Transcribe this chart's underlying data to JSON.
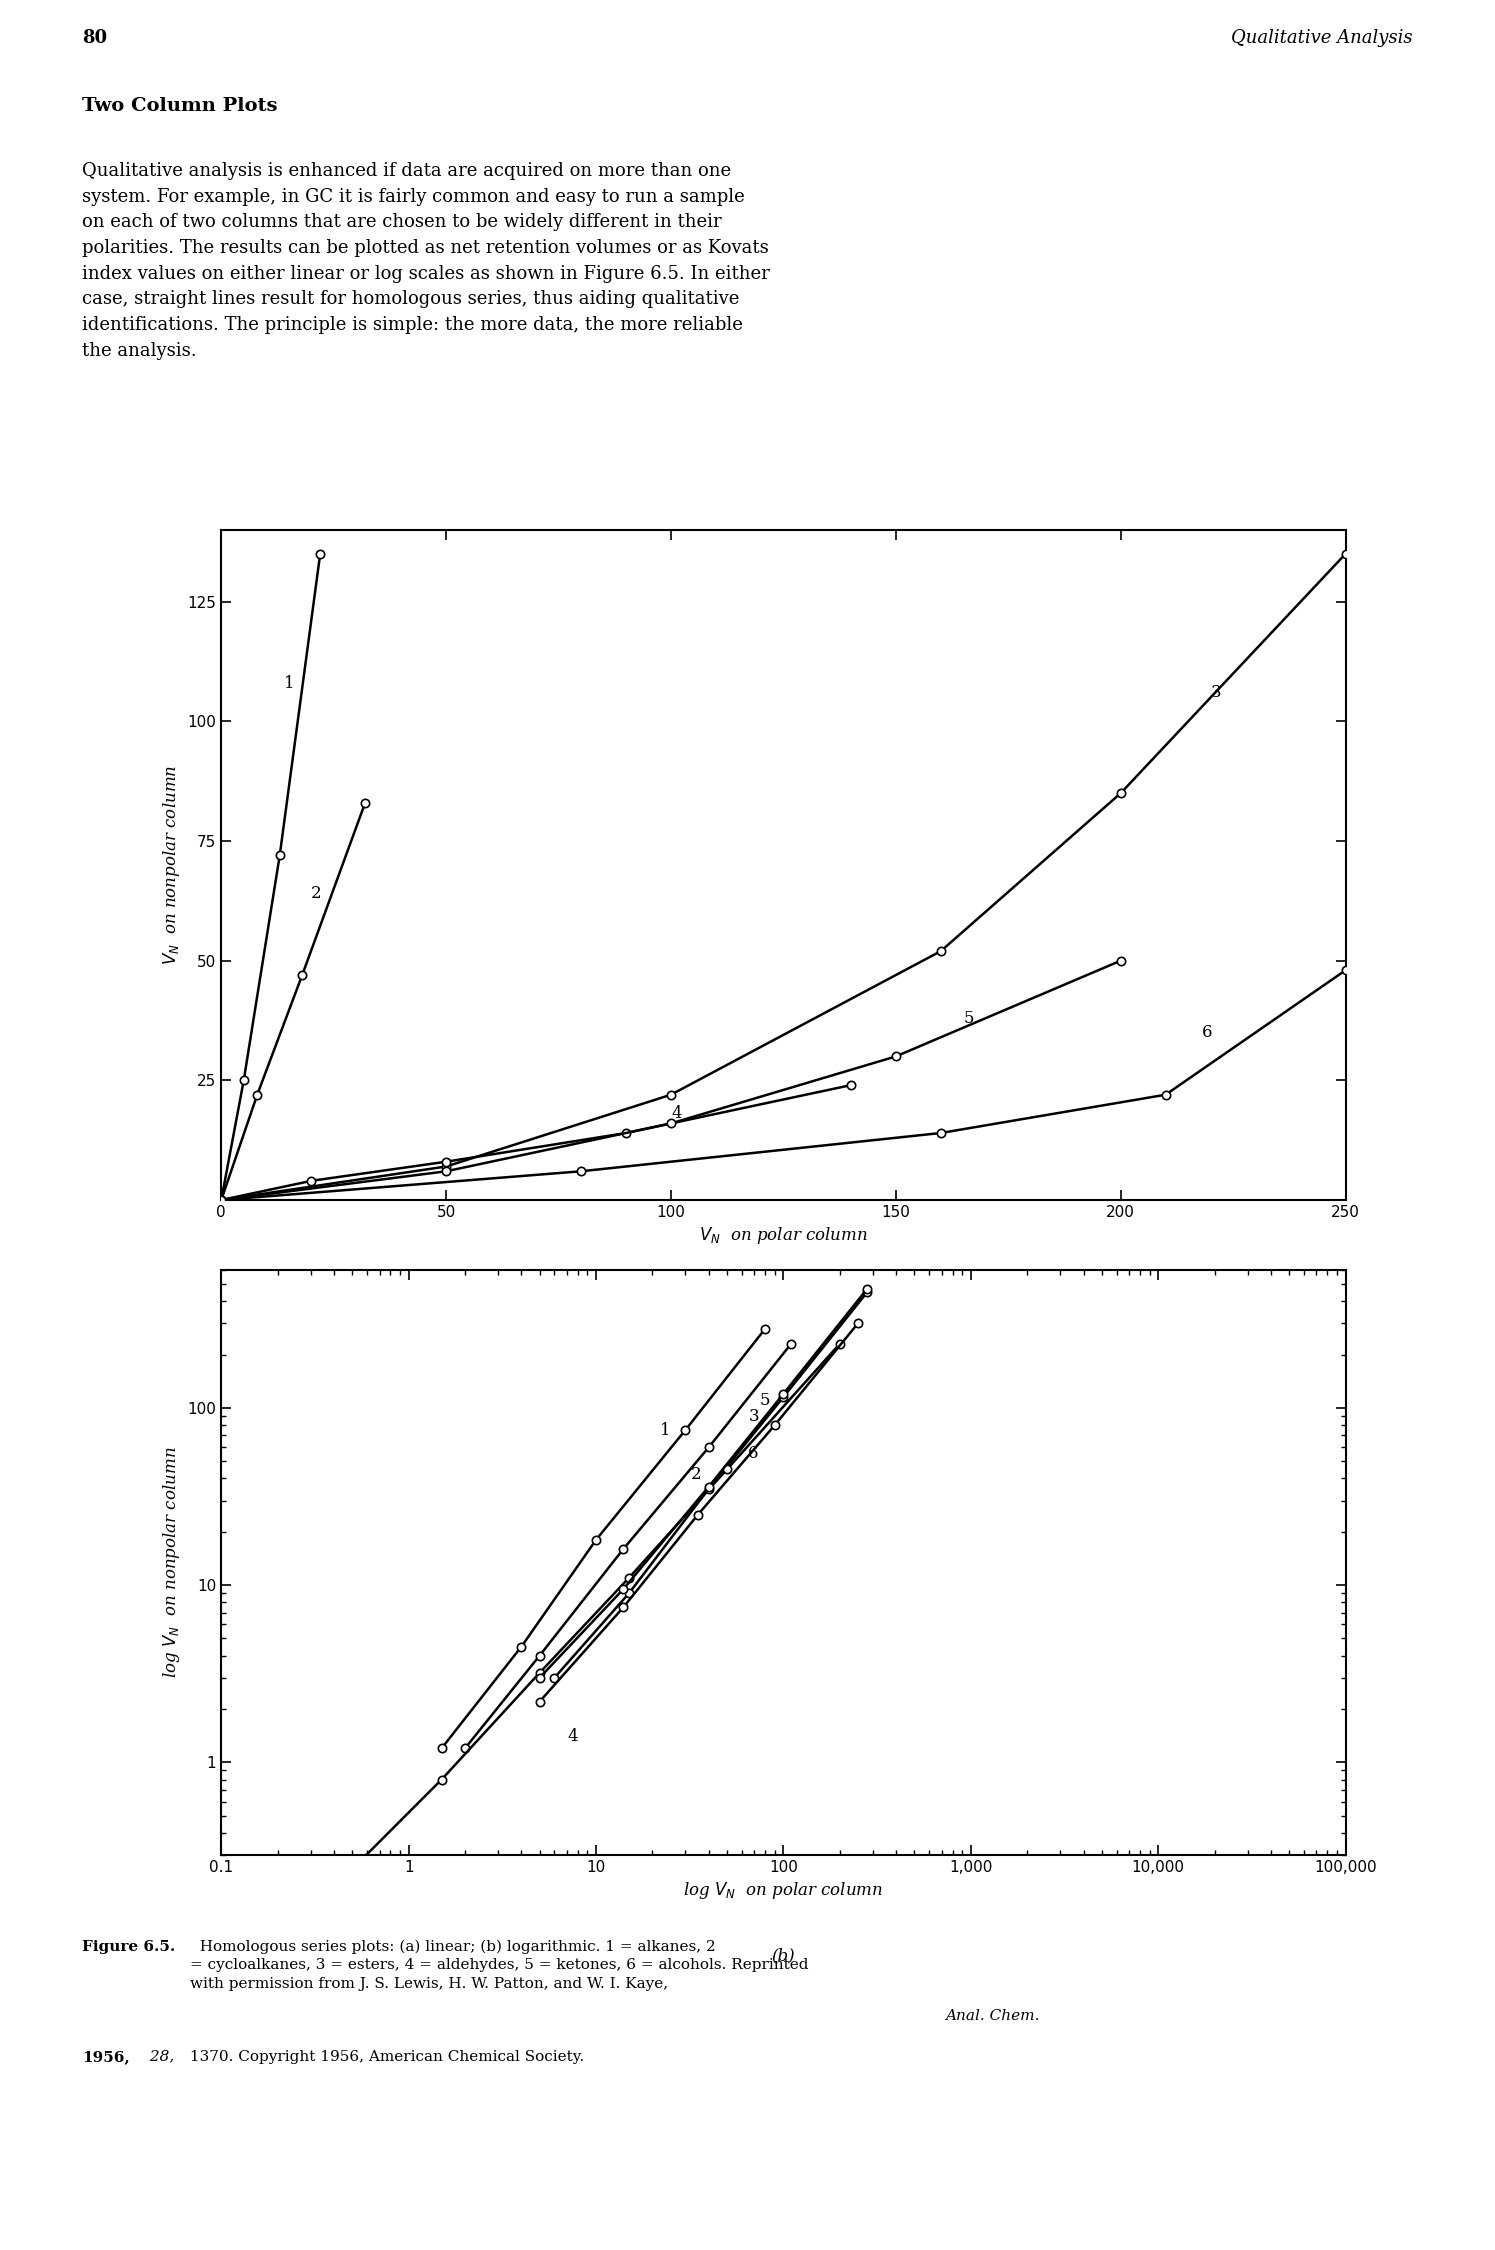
{
  "xlabel_a": "$V_N$  on polar column",
  "ylabel_a": "$V_N$  on nonpolar column",
  "xlabel_b": "log $V_N$  on polar column",
  "ylabel_b": "log $V_N$  on nonpolar column",
  "xlim_a": [
    0,
    250
  ],
  "ylim_a": [
    0,
    140
  ],
  "xticks_a": [
    0,
    50,
    100,
    150,
    200,
    250
  ],
  "yticks_a": [
    25,
    50,
    75,
    100,
    125
  ],
  "series_a": [
    {
      "label": "1",
      "x": [
        0,
        5,
        13,
        22
      ],
      "y": [
        0,
        25,
        72,
        135
      ]
    },
    {
      "label": "2",
      "x": [
        0,
        8,
        18,
        32
      ],
      "y": [
        0,
        22,
        47,
        83
      ]
    },
    {
      "label": "3",
      "x": [
        0,
        50,
        100,
        160,
        200,
        250
      ],
      "y": [
        0,
        7,
        22,
        52,
        85,
        135
      ]
    },
    {
      "label": "4",
      "x": [
        0,
        20,
        50,
        90,
        140
      ],
      "y": [
        0,
        4,
        8,
        14,
        24
      ]
    },
    {
      "label": "5",
      "x": [
        0,
        50,
        100,
        150,
        200
      ],
      "y": [
        0,
        6,
        16,
        30,
        50
      ]
    },
    {
      "label": "6",
      "x": [
        0,
        80,
        160,
        210,
        250
      ],
      "y": [
        0,
        6,
        14,
        22,
        48
      ]
    }
  ],
  "label_pos_a": [
    [
      14,
      108,
      "1"
    ],
    [
      20,
      64,
      "2"
    ],
    [
      220,
      106,
      "3"
    ],
    [
      100,
      18,
      "4"
    ],
    [
      165,
      38,
      "5"
    ],
    [
      218,
      35,
      "6"
    ]
  ],
  "series_b": [
    {
      "label": "1",
      "x": [
        1.5,
        4,
        10,
        30,
        80
      ],
      "y": [
        1.2,
        4.5,
        18,
        75,
        280
      ]
    },
    {
      "label": "2",
      "x": [
        2,
        5,
        14,
        40,
        110
      ],
      "y": [
        1.2,
        4.0,
        16,
        60,
        230
      ]
    },
    {
      "label": "3",
      "x": [
        6,
        15,
        40,
        100,
        280
      ],
      "y": [
        3.0,
        9,
        35,
        115,
        450
      ]
    },
    {
      "label": "4",
      "x": [
        0.5,
        1.5,
        5,
        15,
        50,
        200
      ],
      "y": [
        0.25,
        0.8,
        3.2,
        11,
        45,
        230
      ]
    },
    {
      "label": "5",
      "x": [
        5,
        14,
        40,
        100,
        280
      ],
      "y": [
        3.0,
        9.5,
        36,
        120,
        470
      ]
    },
    {
      "label": "6",
      "x": [
        5,
        14,
        35,
        90,
        250
      ],
      "y": [
        2.2,
        7.5,
        25,
        80,
        300
      ]
    }
  ],
  "label_pos_b": [
    [
      22,
      75,
      "1"
    ],
    [
      32,
      42,
      "2"
    ],
    [
      65,
      90,
      "3"
    ],
    [
      7,
      1.4,
      "4"
    ],
    [
      75,
      110,
      "5"
    ],
    [
      65,
      55,
      "6"
    ]
  ],
  "bg_color": "#ffffff",
  "line_color": "#000000",
  "marker": "o",
  "marker_size": 6,
  "marker_fc": "white",
  "marker_ec": "black",
  "lw": 1.8,
  "fontsize_header": 13,
  "fontsize_heading": 14,
  "fontsize_body": 13,
  "fontsize_label": 12,
  "fontsize_tick": 11,
  "fontsize_annot": 12,
  "fontsize_caption": 11,
  "header_page": "80",
  "header_right": "Qualitative Analysis",
  "section_heading": "Two Column Plots",
  "body_text": "Qualitative analysis is enhanced if data are acquired on more than one\nsystem. For example, in GC it is fairly common and easy to run a sample\non each of two columns that are chosen to be widely different in their\npolarities. The results can be plotted as net retention volumes or as Kovats\nindex values on either linear or log scales as shown in Figure 6.5. In either\ncase, straight lines result for homologous series, thus aiding qualitative\nidentifications. The principle is simple: the more data, the more reliable\nthe analysis."
}
